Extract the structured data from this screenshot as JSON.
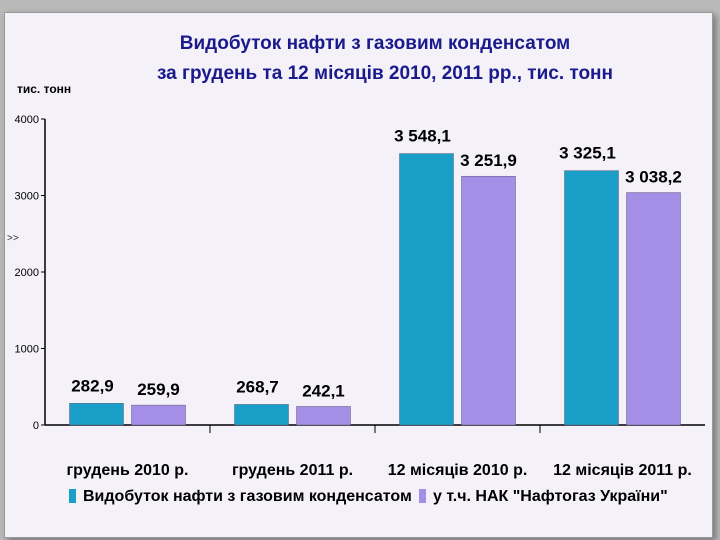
{
  "chart_data": {
    "type": "bar",
    "title": "Видобуток нафти з газовим конденсатом",
    "subtitle": "за грудень та 12 місяців 2010, 2011 рр., тис. тонн",
    "ylabel": "тис. тонн",
    "xlabel": "",
    "ylim": [
      0,
      4000
    ],
    "yticks": [
      "0",
      "1000",
      "2000",
      "3000",
      "4000"
    ],
    "categories": [
      "грудень 2010 р.",
      "грудень 2011 р.",
      "12 місяців 2010 р.",
      "12 місяців 2011 р."
    ],
    "series": [
      {
        "name": "Видобуток нафти з газовим конденсатом",
        "color": "#1aa0c8",
        "values": [
          282.9,
          268.7,
          3548.1,
          3325.1
        ],
        "labels": [
          "282,9",
          "268,7",
          "3 548,1",
          "3 325,1"
        ]
      },
      {
        "name": "у т.ч. НАК \"Нафтогаз України\"",
        "color": "#a58fe6",
        "values": [
          259.9,
          242.1,
          3251.9,
          3038.2
        ],
        "labels": [
          "259,9",
          "242,1",
          "3 251,9",
          "3 038,2"
        ]
      }
    ],
    "grid": false,
    "legend_position": "bottom"
  },
  "side_marker": ">>"
}
